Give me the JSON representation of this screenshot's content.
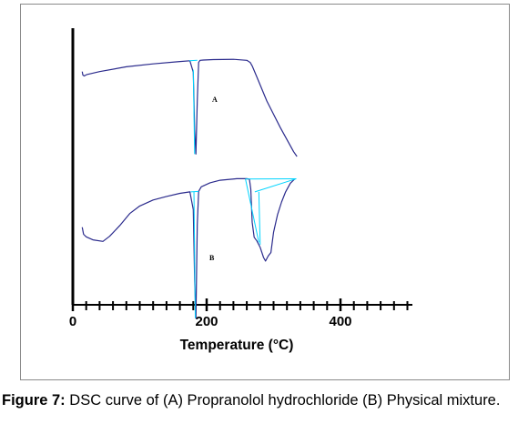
{
  "chart_data": {
    "type": "line",
    "xlabel": "Temperature (°C)",
    "ylabel": "",
    "xlim": [
      0,
      500
    ],
    "x_ticks": [
      0,
      200,
      400
    ],
    "x_tick_labels": [
      "0",
      "200",
      "400"
    ],
    "grid": false,
    "colors": {
      "curve": "#2a2a8c",
      "baseline": "#00d4ff",
      "axis": "#000000"
    },
    "series": [
      {
        "name": "A",
        "x": [
          14,
          15,
          17,
          21,
          40,
          80,
          120,
          160,
          175,
          180,
          182,
          184,
          186,
          188,
          190,
          195,
          210,
          240,
          260,
          265,
          268,
          275,
          290,
          310,
          330,
          335
        ],
        "y": [
          -2.4,
          -3.1,
          -3.3,
          -3.0,
          -2.4,
          -1.4,
          -0.8,
          -0.3,
          -0.15,
          -2.5,
          -14.5,
          -19.5,
          -8.5,
          -0.5,
          -0.05,
          0.0,
          0.1,
          0.15,
          -0.05,
          -0.5,
          -1.2,
          -3.5,
          -8.5,
          -14.0,
          -19.0,
          -20.0
        ],
        "baseline_segments": [
          {
            "x": [
              174,
              186
            ],
            "y": [
              -0.15,
              -0.05
            ]
          },
          {
            "x": [
              180,
              182
            ],
            "y": [
              -2.0,
              -19.5
            ]
          }
        ]
      },
      {
        "name": "B",
        "x": [
          14,
          16,
          20,
          30,
          45,
          55,
          70,
          85,
          100,
          120,
          140,
          160,
          175,
          180,
          182,
          184,
          186,
          188,
          192,
          205,
          220,
          245,
          260,
          264,
          266,
          268,
          271,
          275,
          280,
          285,
          288,
          292,
          296,
          300,
          306,
          312,
          318,
          325,
          332
        ],
        "y": [
          -9.5,
          -10.9,
          -11.4,
          -12.0,
          -12.3,
          -11.3,
          -9.2,
          -6.8,
          -5.3,
          -4.1,
          -3.4,
          -2.8,
          -2.5,
          -6.0,
          -20.0,
          -27.5,
          -9.0,
          -2.4,
          -1.5,
          -0.7,
          -0.2,
          0.1,
          0.1,
          0.0,
          -2.0,
          -8.5,
          -11.5,
          -12.2,
          -13.5,
          -15.5,
          -16.2,
          -15.2,
          -14.5,
          -10.5,
          -7.0,
          -4.5,
          -2.5,
          -0.8,
          0.1
        ],
        "baseline_segments": [
          {
            "x": [
              176,
              188
            ],
            "y": [
              -2.5,
              -2.4
            ]
          },
          {
            "x": [
              181,
              183
            ],
            "y": [
              -2.4,
              -27.5
            ]
          },
          {
            "x": [
              258,
              334
            ],
            "y": [
              0.05,
              0.1
            ]
          },
          {
            "x": [
              258,
              278
            ],
            "y": [
              0.05,
              -12.5
            ]
          },
          {
            "x": [
              272,
              334
            ],
            "y": [
              -2.5,
              0.1
            ]
          },
          {
            "x": [
              278,
              280
            ],
            "y": [
              -2.5,
              -13.0
            ]
          }
        ]
      }
    ]
  },
  "caption": {
    "label": "Figure 7:",
    "text": "DSC curve of (A) Propranolol hydrochloride (B) Physical mixture."
  }
}
